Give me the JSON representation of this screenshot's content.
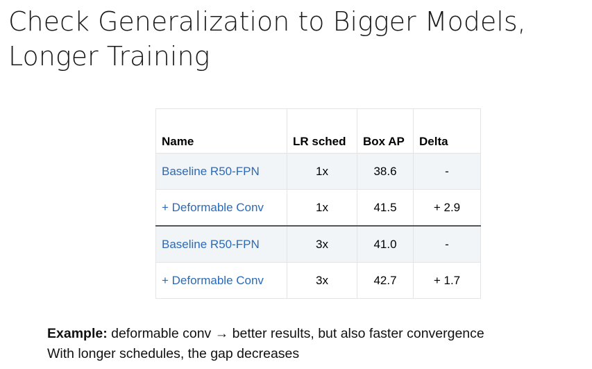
{
  "slide": {
    "title_line1": "Check Generalization to Bigger Models,",
    "title_line2": "Longer Training"
  },
  "table": {
    "headers": [
      "Name",
      "LR sched",
      "Box AP",
      "Delta"
    ],
    "rows": [
      {
        "name": "Baseline R50-FPN",
        "lr_sched": "1x",
        "box_ap": "38.6",
        "delta": "-"
      },
      {
        "name": "+ Deformable Conv",
        "lr_sched": "1x",
        "box_ap": "41.5",
        "delta": "+ 2.9"
      },
      {
        "name": "Baseline R50-FPN",
        "lr_sched": "3x",
        "box_ap": "41.0",
        "delta": "-"
      },
      {
        "name": "+ Deformable Conv",
        "lr_sched": "3x",
        "box_ap": "42.7",
        "delta": "+ 1.7"
      }
    ]
  },
  "caption": {
    "line1_bold": "Example:",
    "line1_rest": " deformable conv",
    "arrow": " → ",
    "line1_end": "better results, but also faster convergence",
    "line2": "With longer schedules, the gap decreases"
  },
  "colors": {
    "link_blue": "#2a6ab8",
    "row_shade": "#f2f5f8"
  }
}
